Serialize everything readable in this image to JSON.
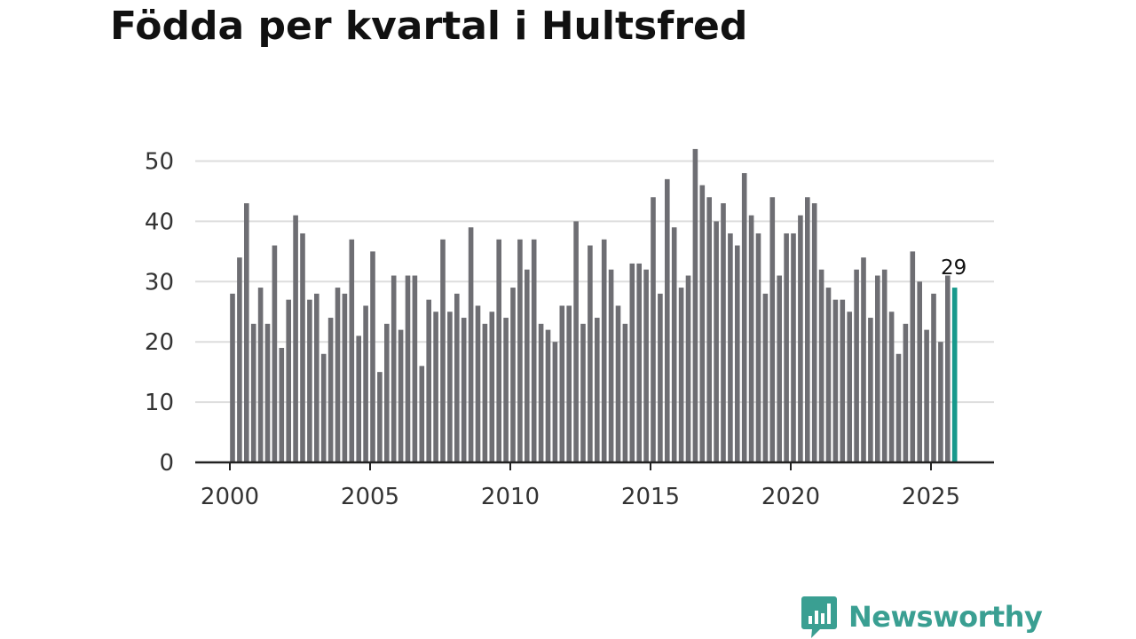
{
  "title": "Födda per kvartal i Hultsfred",
  "brand": {
    "name": "Newsworthy",
    "icon": "bar-chart-bubble-icon",
    "color": "#3a9f92"
  },
  "colors": {
    "bar": "#6e6e73",
    "highlight": "#17998c",
    "grid": "#dddddd",
    "axis": "#222222"
  },
  "chart_data": {
    "type": "bar",
    "title": "Födda per kvartal i Hultsfred",
    "xlabel": "",
    "ylabel": "",
    "ylim": [
      0,
      52
    ],
    "yticks": [
      0,
      10,
      20,
      30,
      40,
      50
    ],
    "xticks": [
      "2000",
      "2005",
      "2010",
      "2015",
      "2020",
      "2025"
    ],
    "grid": true,
    "start_year": 2000,
    "values": [
      28,
      34,
      43,
      23,
      29,
      23,
      36,
      19,
      27,
      41,
      38,
      27,
      28,
      18,
      24,
      29,
      28,
      37,
      21,
      26,
      35,
      15,
      23,
      31,
      22,
      31,
      31,
      16,
      27,
      25,
      37,
      25,
      28,
      24,
      39,
      26,
      23,
      25,
      37,
      24,
      29,
      37,
      32,
      37,
      23,
      22,
      20,
      26,
      26,
      40,
      23,
      36,
      24,
      37,
      32,
      26,
      23,
      33,
      33,
      32,
      44,
      28,
      47,
      39,
      29,
      31,
      52,
      46,
      44,
      40,
      43,
      38,
      36,
      48,
      41,
      38,
      28,
      44,
      31,
      38,
      38,
      41,
      44,
      43,
      32,
      29,
      27,
      27,
      25,
      32,
      34,
      24,
      31,
      32,
      25,
      18,
      23,
      35,
      30,
      22,
      28,
      20,
      31,
      29
    ],
    "highlight_last": true,
    "annotation": {
      "label": "29",
      "value": 29
    }
  }
}
